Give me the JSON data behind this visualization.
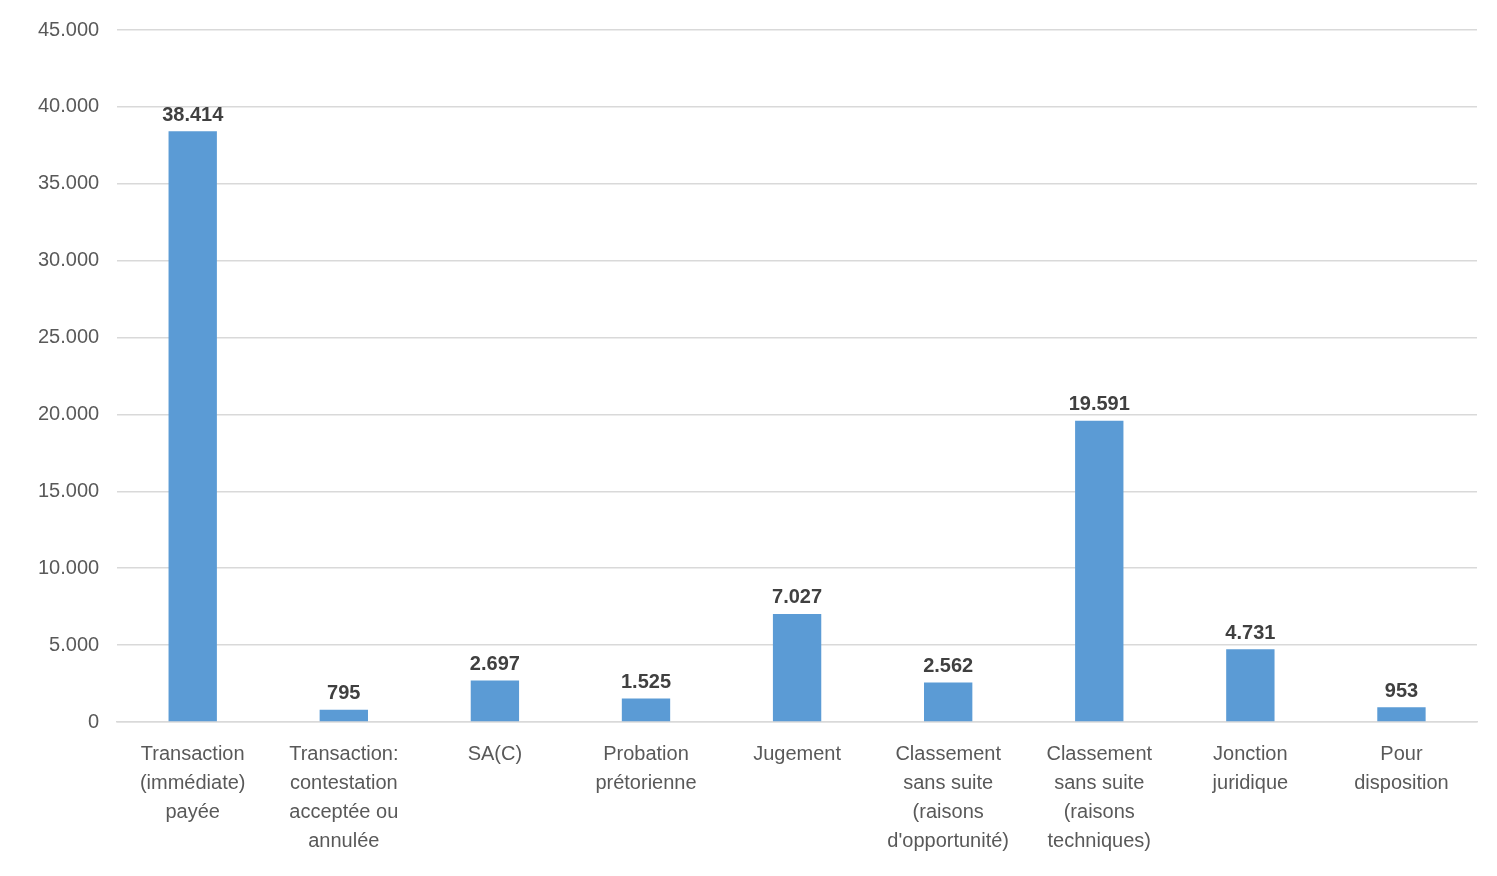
{
  "chart_data": {
    "type": "bar",
    "categories": [
      "Transaction (immédiate) payée",
      "Transaction: contestation acceptée ou annulée",
      "SA(C)",
      "Probation prétorienne",
      "Jugement",
      "Classement sans suite (raisons d'opportunité)",
      "Classement sans suite (raisons techniques)",
      "Jonction juridique",
      "Pour disposition"
    ],
    "values": [
      38414,
      795,
      2697,
      1525,
      7027,
      2562,
      19591,
      4731,
      953
    ],
    "value_labels": [
      "38.414",
      "795",
      "2.697",
      "1.525",
      "7.027",
      "2.562",
      "19.591",
      "4.731",
      "953"
    ],
    "color": "#5b9bd5",
    "ylim": [
      0,
      45000
    ],
    "yticks": [
      {
        "value": 0,
        "label": "0"
      },
      {
        "value": 5000,
        "label": "5.000"
      },
      {
        "value": 10000,
        "label": "10.000"
      },
      {
        "value": 15000,
        "label": "15.000"
      },
      {
        "value": 20000,
        "label": "20.000"
      },
      {
        "value": 25000,
        "label": "25.000"
      },
      {
        "value": 30000,
        "label": "30.000"
      },
      {
        "value": 35000,
        "label": "35.000"
      },
      {
        "value": 40000,
        "label": "40.000"
      },
      {
        "value": 45000,
        "label": "45.000"
      }
    ],
    "grid": "y"
  }
}
